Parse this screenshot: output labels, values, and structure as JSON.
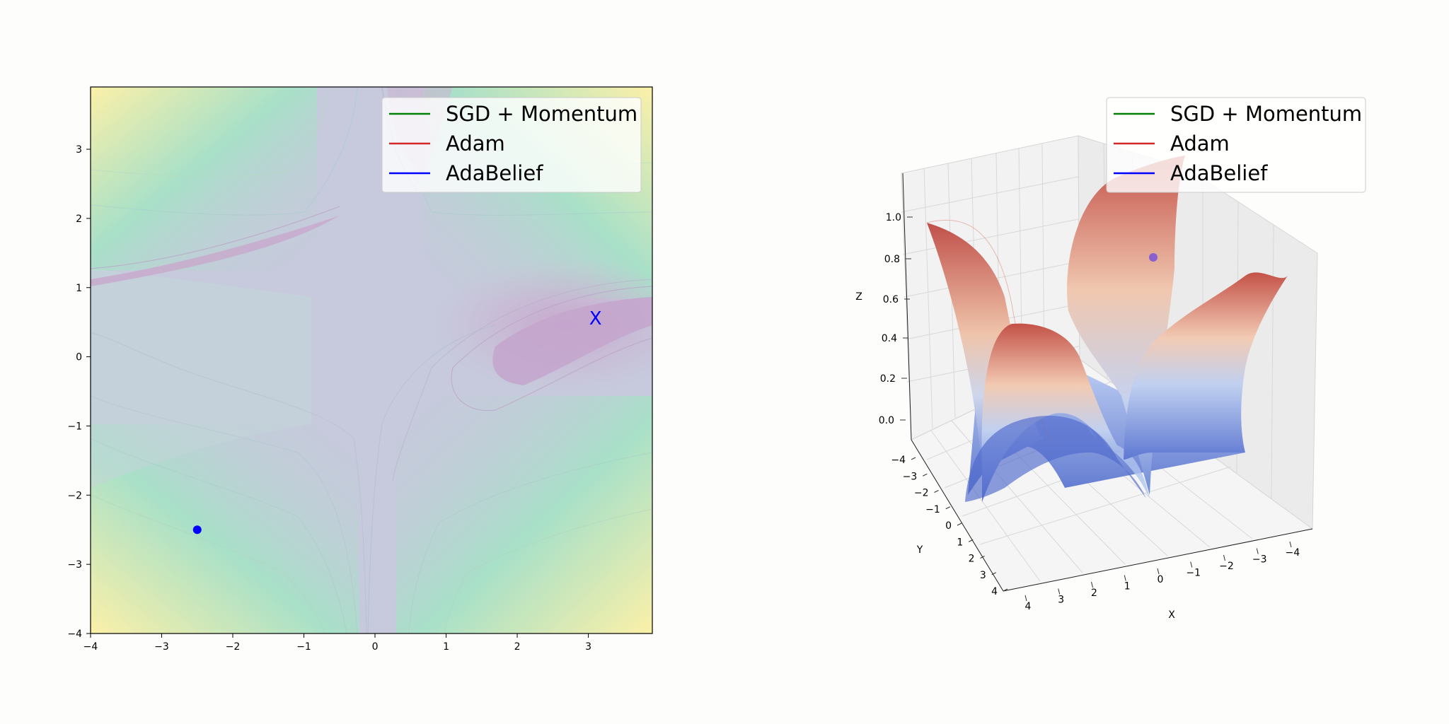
{
  "chart_data": [
    {
      "type": "contour",
      "title": "",
      "xlabel": "",
      "ylabel": "",
      "xlim": [
        -4,
        3.9
      ],
      "ylim": [
        -4,
        3.9
      ],
      "xticks": [
        "−4",
        "−3",
        "−2",
        "−1",
        "0",
        "1",
        "2",
        "3"
      ],
      "yticks": [
        "−4",
        "−3",
        "−2",
        "−1",
        "0",
        "1",
        "2",
        "3"
      ],
      "colormap": "viridis (faded)",
      "legend": {
        "placement": "top-right",
        "entries": [
          {
            "label": "SGD + Momentum",
            "color": "#008000"
          },
          {
            "label": "Adam",
            "color": "#d62728"
          },
          {
            "label": "AdaBelief",
            "color": "#0000ff"
          }
        ]
      },
      "markers": [
        {
          "kind": "point",
          "x": -2.5,
          "y": -2.5,
          "color": "#0000ff"
        },
        {
          "kind": "x",
          "label": "X",
          "x": 3.1,
          "y": 0.57,
          "color": "#0000ff"
        }
      ]
    },
    {
      "type": "surface3d",
      "title": "",
      "xlabel": "X",
      "ylabel": "Y",
      "zlabel": "Z",
      "xticks": [
        "4",
        "3",
        "2",
        "1",
        "0",
        "−1",
        "−2",
        "−3",
        "−4"
      ],
      "yticks": [
        "−4",
        "−3",
        "−2",
        "−1",
        "0",
        "1",
        "2",
        "3",
        "4"
      ],
      "zticks": [
        "0.0",
        "0.2",
        "0.4",
        "0.6",
        "0.8",
        "1.0"
      ],
      "zlim": [
        0,
        1.15
      ],
      "colormap": "coolwarm",
      "legend": {
        "placement": "top-right",
        "entries": [
          {
            "label": "SGD + Momentum",
            "color": "#008000"
          },
          {
            "label": "Adam",
            "color": "#d62728"
          },
          {
            "label": "AdaBelief",
            "color": "#0000ff"
          }
        ]
      },
      "markers": [
        {
          "kind": "point",
          "z": 0.8,
          "color": "#8a5fd0"
        }
      ]
    }
  ]
}
